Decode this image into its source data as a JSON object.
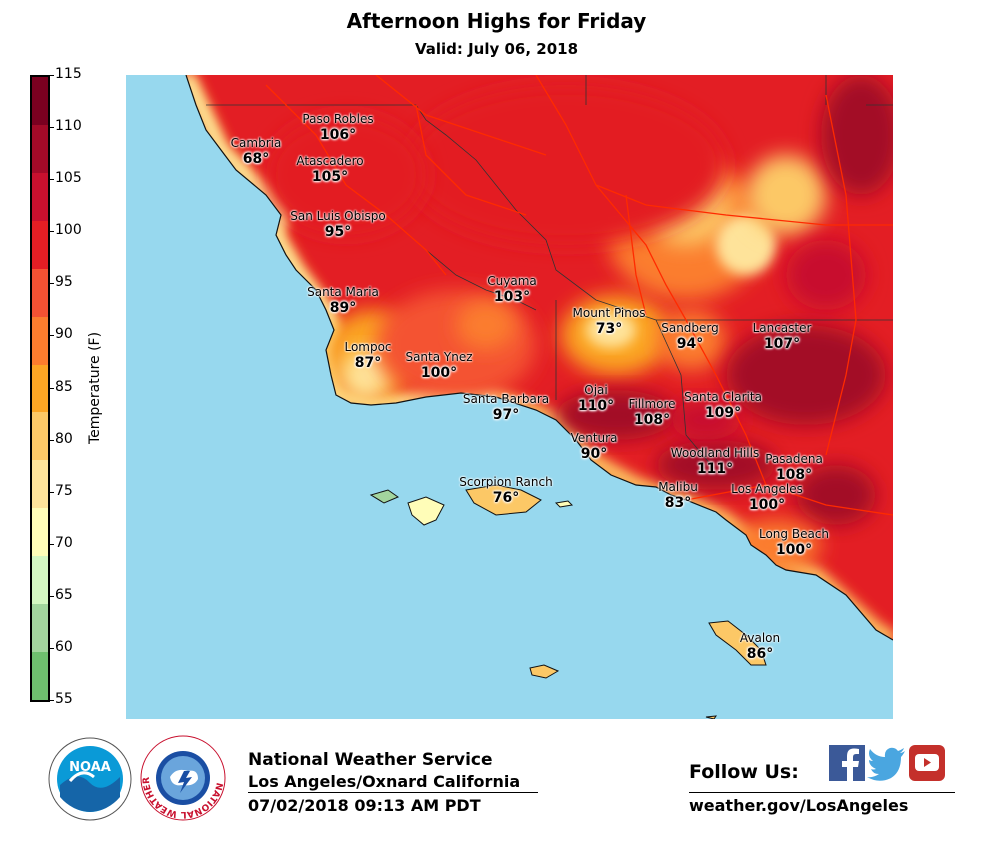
{
  "header": {
    "title": "Afternoon Highs for Friday",
    "subtitle": "Valid: July 06, 2018"
  },
  "colorbar": {
    "label": "Temperature (F)",
    "ticks": [
      "115",
      "110",
      "105",
      "100",
      "95",
      "90",
      "85",
      "80",
      "75",
      "70",
      "65",
      "60",
      "55"
    ],
    "bands": [
      "#7a0020",
      "#a30a28",
      "#c8102e",
      "#e31e24",
      "#f45233",
      "#fb7d2e",
      "#fba524",
      "#fcc866",
      "#fee39a",
      "#fffdb8",
      "#d5f7c2",
      "#a3d59e",
      "#6ebf6e"
    ]
  },
  "map": {
    "ocean_color": "#97d8ee",
    "cities": [
      {
        "name": "Paso Robles",
        "temp": "106°"
      },
      {
        "name": "Cambria",
        "temp": "68°"
      },
      {
        "name": "Atascadero",
        "temp": "105°"
      },
      {
        "name": "San Luis Obispo",
        "temp": "95°"
      },
      {
        "name": "Cuyama",
        "temp": "103°"
      },
      {
        "name": "Santa Maria",
        "temp": "89°"
      },
      {
        "name": "Mount Pinos",
        "temp": "73°"
      },
      {
        "name": "Sandberg",
        "temp": "94°"
      },
      {
        "name": "Lancaster",
        "temp": "107°"
      },
      {
        "name": "Lompoc",
        "temp": "87°"
      },
      {
        "name": "Santa Ynez",
        "temp": "100°"
      },
      {
        "name": "Santa Barbara",
        "temp": "97°"
      },
      {
        "name": "Ojai",
        "temp": "110°"
      },
      {
        "name": "Fillmore",
        "temp": "108°"
      },
      {
        "name": "Santa Clarita",
        "temp": "109°"
      },
      {
        "name": "Ventura",
        "temp": "90°"
      },
      {
        "name": "Woodland Hills",
        "temp": "111°"
      },
      {
        "name": "Pasadena",
        "temp": "108°"
      },
      {
        "name": "Scorpion Ranch",
        "temp": "76°"
      },
      {
        "name": "Malibu",
        "temp": "83°"
      },
      {
        "name": "Los Angeles",
        "temp": "100°"
      },
      {
        "name": "Long Beach",
        "temp": "100°"
      },
      {
        "name": "Avalon",
        "temp": "86°"
      }
    ]
  },
  "footer": {
    "org_name": "National Weather Service",
    "office": "Los Angeles/Oxnard California",
    "issued": "07/02/2018 09:13 AM PDT",
    "follow_label": "Follow Us:",
    "website": "weather.gov/LosAngeles",
    "noaa_text": "NOAA",
    "nws_ring_text": "NATIONAL WEATHER SERVICE"
  }
}
